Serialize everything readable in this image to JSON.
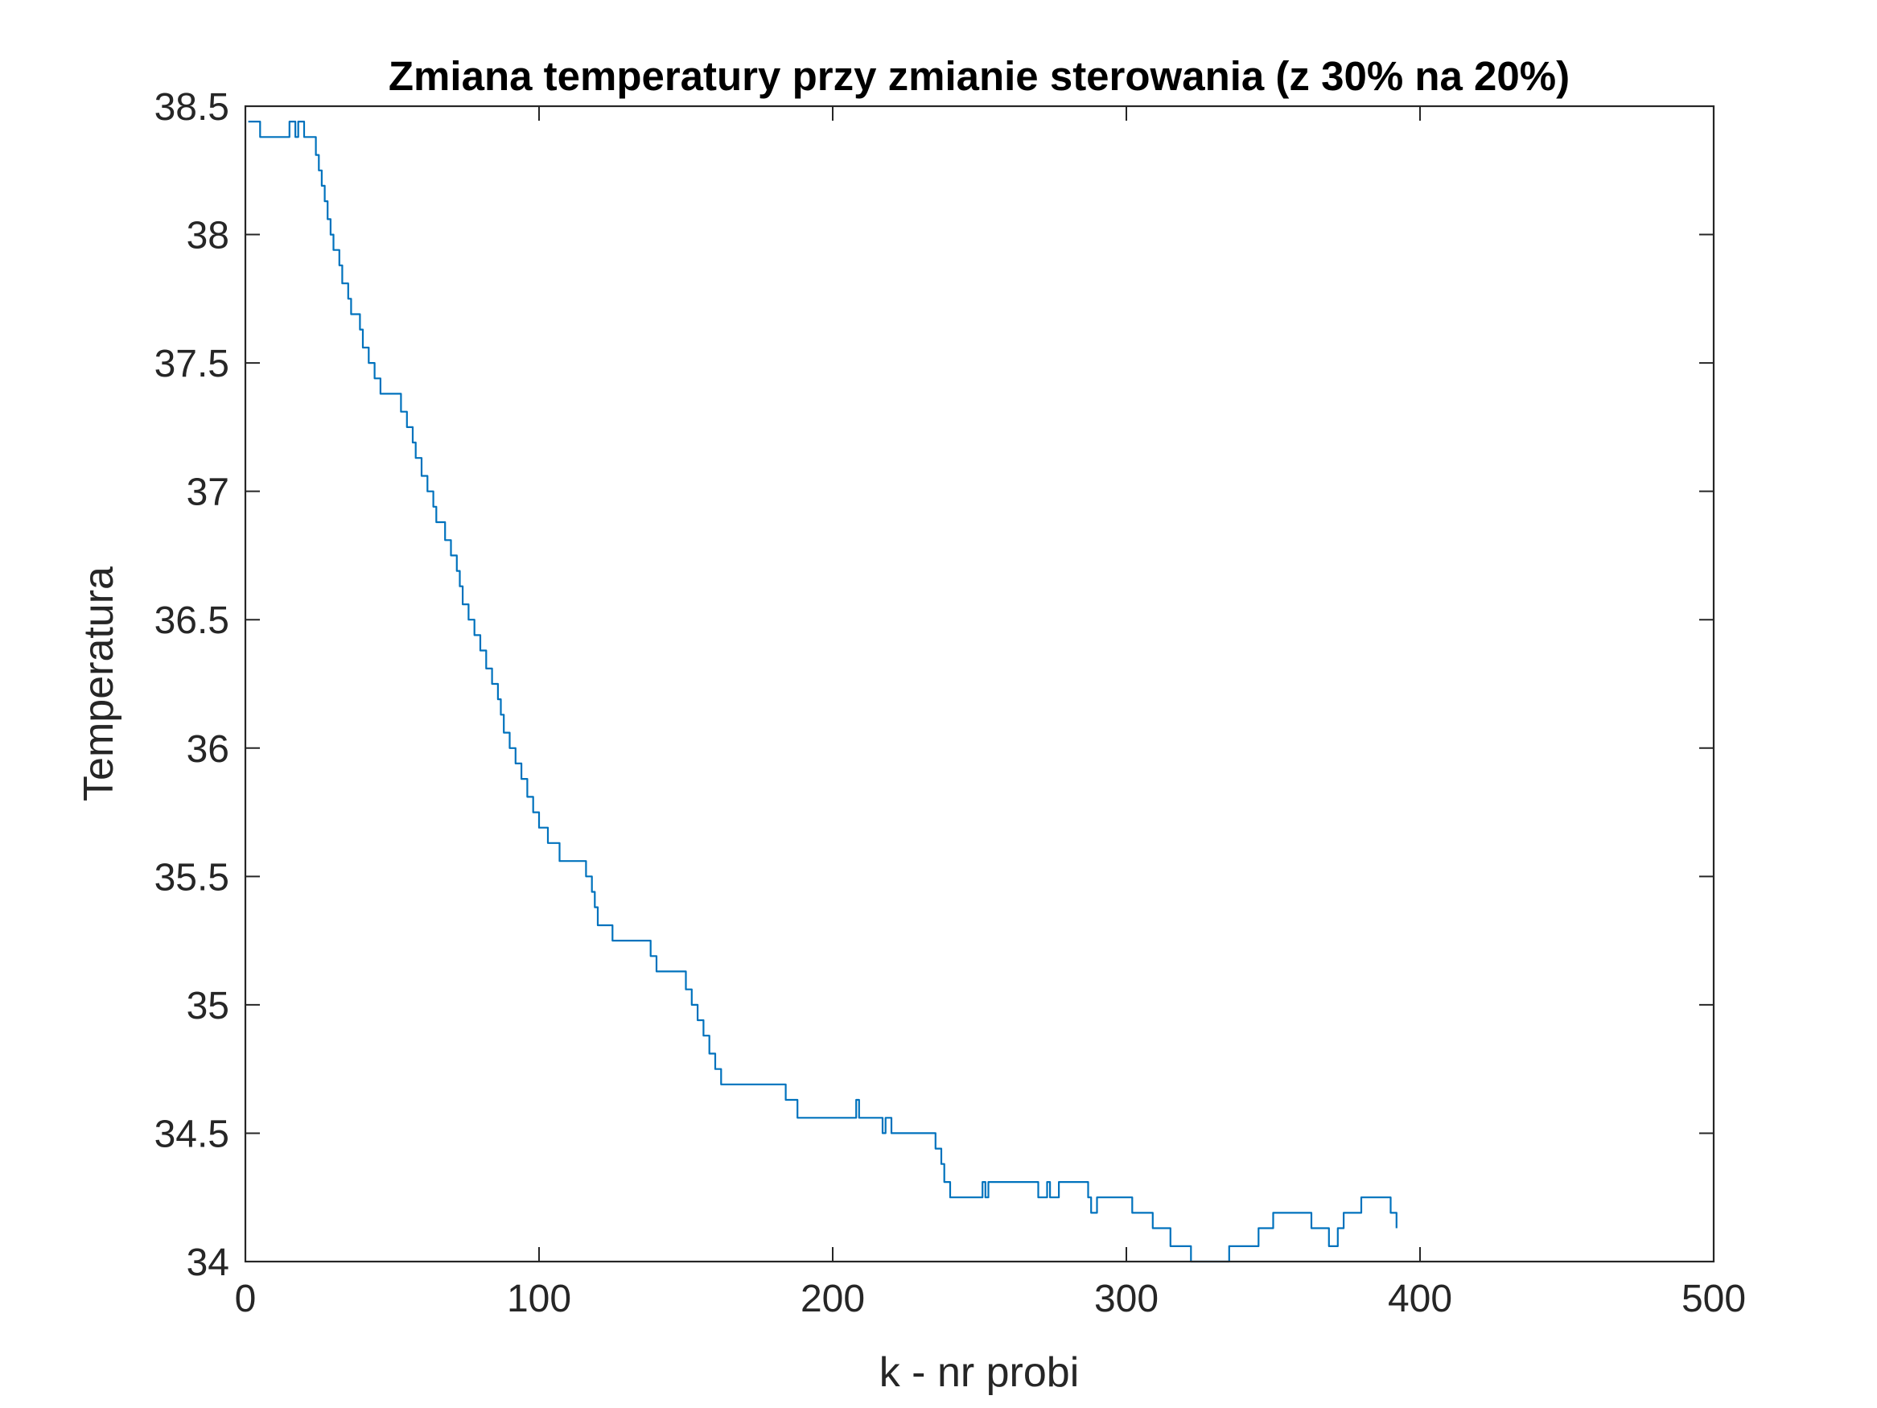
{
  "chart_data": {
    "type": "line",
    "title": "Zmiana temperatury przy zmianie sterowania (z 30% na 20%)",
    "xlabel": "k - nr probi",
    "ylabel": "Temperatura",
    "xlim": [
      0,
      500
    ],
    "ylim": [
      34,
      38.5
    ],
    "xticks": [
      0,
      100,
      200,
      300,
      400,
      500
    ],
    "xtick_labels": [
      "0",
      "100",
      "200",
      "300",
      "400",
      "500"
    ],
    "yticks": [
      34,
      34.5,
      35,
      35.5,
      36,
      36.5,
      37,
      37.5,
      38,
      38.5
    ],
    "ytick_labels": [
      "34",
      "34.5",
      "35",
      "35.5",
      "36",
      "36.5",
      "37",
      "37.5",
      "38",
      "38.5"
    ],
    "grid": false,
    "box": true,
    "colors": {
      "line": "#0072BD",
      "axes": "#262626",
      "title": "#000000",
      "background": "#ffffff"
    },
    "series": [
      {
        "values": [
          [
            1,
            38.44
          ],
          [
            3,
            38.44
          ],
          [
            5,
            38.38
          ],
          [
            14,
            38.38
          ],
          [
            15,
            38.44
          ],
          [
            16,
            38.44
          ],
          [
            17,
            38.38
          ],
          [
            18,
            38.44
          ],
          [
            19,
            38.44
          ],
          [
            20,
            38.38
          ],
          [
            22,
            38.38
          ],
          [
            24,
            38.31
          ],
          [
            25,
            38.25
          ],
          [
            26,
            38.19
          ],
          [
            27,
            38.13
          ],
          [
            28,
            38.06
          ],
          [
            29,
            38.0
          ],
          [
            30,
            37.94
          ],
          [
            32,
            37.88
          ],
          [
            33,
            37.81
          ],
          [
            35,
            37.75
          ],
          [
            36,
            37.69
          ],
          [
            39,
            37.63
          ],
          [
            40,
            37.56
          ],
          [
            42,
            37.5
          ],
          [
            44,
            37.44
          ],
          [
            46,
            37.38
          ],
          [
            53,
            37.31
          ],
          [
            55,
            37.25
          ],
          [
            57,
            37.19
          ],
          [
            58,
            37.13
          ],
          [
            60,
            37.06
          ],
          [
            62,
            37.0
          ],
          [
            64,
            36.94
          ],
          [
            65,
            36.88
          ],
          [
            68,
            36.81
          ],
          [
            70,
            36.75
          ],
          [
            72,
            36.69
          ],
          [
            73,
            36.63
          ],
          [
            74,
            36.56
          ],
          [
            76,
            36.5
          ],
          [
            78,
            36.44
          ],
          [
            80,
            36.38
          ],
          [
            82,
            36.31
          ],
          [
            84,
            36.25
          ],
          [
            86,
            36.19
          ],
          [
            87,
            36.13
          ],
          [
            88,
            36.06
          ],
          [
            90,
            36.0
          ],
          [
            92,
            35.94
          ],
          [
            94,
            35.88
          ],
          [
            96,
            35.81
          ],
          [
            98,
            35.75
          ],
          [
            100,
            35.69
          ],
          [
            103,
            35.63
          ],
          [
            107,
            35.56
          ],
          [
            116,
            35.5
          ],
          [
            118,
            35.44
          ],
          [
            119,
            35.38
          ],
          [
            120,
            35.31
          ],
          [
            125,
            35.25
          ],
          [
            138,
            35.19
          ],
          [
            140,
            35.13
          ],
          [
            150,
            35.06
          ],
          [
            152,
            35.0
          ],
          [
            154,
            34.94
          ],
          [
            156,
            34.88
          ],
          [
            158,
            34.81
          ],
          [
            160,
            34.75
          ],
          [
            162,
            34.69
          ],
          [
            184,
            34.63
          ],
          [
            188,
            34.56
          ],
          [
            207,
            34.56
          ],
          [
            208,
            34.63
          ],
          [
            209,
            34.56
          ],
          [
            216,
            34.56
          ],
          [
            217,
            34.5
          ],
          [
            218,
            34.56
          ],
          [
            219,
            34.56
          ],
          [
            220,
            34.5
          ],
          [
            234,
            34.5
          ],
          [
            235,
            34.44
          ],
          [
            237,
            34.38
          ],
          [
            238,
            34.31
          ],
          [
            240,
            34.25
          ],
          [
            250,
            34.25
          ],
          [
            251,
            34.31
          ],
          [
            252,
            34.25
          ],
          [
            253,
            34.31
          ],
          [
            269,
            34.31
          ],
          [
            270,
            34.25
          ],
          [
            272,
            34.25
          ],
          [
            273,
            34.31
          ],
          [
            274,
            34.25
          ],
          [
            276,
            34.25
          ],
          [
            277,
            34.31
          ],
          [
            286,
            34.31
          ],
          [
            287,
            34.25
          ],
          [
            288,
            34.19
          ],
          [
            290,
            34.25
          ],
          [
            301,
            34.25
          ],
          [
            302,
            34.19
          ],
          [
            307,
            34.19
          ],
          [
            309,
            34.13
          ],
          [
            315,
            34.06
          ],
          [
            322,
            34.0
          ],
          [
            333,
            34.0
          ],
          [
            335,
            34.06
          ],
          [
            345,
            34.13
          ],
          [
            350,
            34.19
          ],
          [
            361,
            34.19
          ],
          [
            363,
            34.13
          ],
          [
            369,
            34.06
          ],
          [
            372,
            34.13
          ],
          [
            374,
            34.19
          ],
          [
            378,
            34.19
          ],
          [
            380,
            34.25
          ],
          [
            388,
            34.25
          ],
          [
            390,
            34.19
          ],
          [
            392,
            34.13
          ]
        ]
      }
    ]
  }
}
